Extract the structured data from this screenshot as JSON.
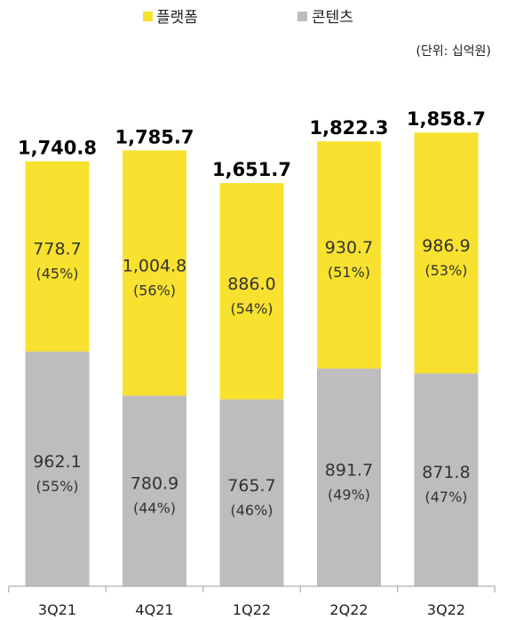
{
  "chart_data": {
    "type": "bar",
    "stacked": true,
    "unit_note": "(단위: 십억원)",
    "categories": [
      "3Q21",
      "4Q21",
      "1Q22",
      "2Q22",
      "3Q22"
    ],
    "totals": [
      "1,740.8",
      "1,785.7",
      "1,651.7",
      "1,822.3",
      "1,858.7"
    ],
    "series": [
      {
        "name": "콘텐츠",
        "color": "#BDBDBD",
        "values": [
          962.1,
          780.9,
          765.7,
          891.7,
          871.8
        ],
        "value_labels": [
          "962.1",
          "780.9",
          "765.7",
          "891.7",
          "871.8"
        ],
        "pct_labels": [
          "(55%)",
          "(44%)",
          "(46%)",
          "(49%)",
          "(47%)"
        ]
      },
      {
        "name": "플랫폼",
        "color": "#F8E12F",
        "values": [
          778.7,
          1004.8,
          886.0,
          930.7,
          986.9
        ],
        "value_labels": [
          "778.7",
          "1,004.8",
          "886.0",
          "930.7",
          "986.9"
        ],
        "pct_labels": [
          "(45%)",
          "(56%)",
          "(54%)",
          "(51%)",
          "(53%)"
        ]
      }
    ],
    "legend": {
      "placement": "top",
      "order": [
        "플랫폼",
        "콘텐츠"
      ]
    },
    "grid": false
  }
}
